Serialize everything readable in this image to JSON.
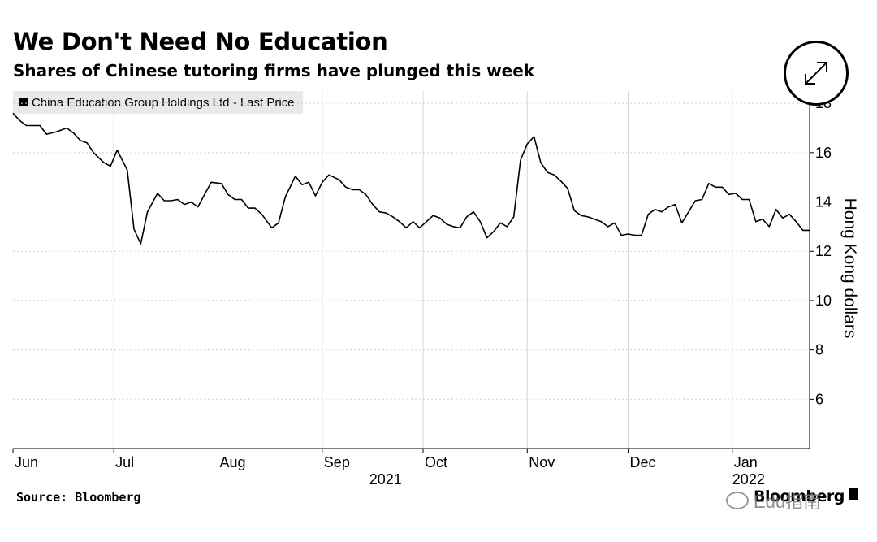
{
  "header": {
    "title": "We Don't Need No Education",
    "subtitle": "Shares of Chinese tutoring firms have plunged this week"
  },
  "legend": {
    "label": "China Education Group Holdings Ltd - Last Price",
    "swatch_color": "#000000"
  },
  "controls": {
    "expand_icon": "expand-arrows-icon"
  },
  "footer": {
    "source": "Source: Bloomberg",
    "brand": "Bloomberg",
    "watermark": "Edu指南",
    "watermark_icon": "wechat-icon"
  },
  "chart_data": {
    "type": "line",
    "title": "We Don't Need No Education",
    "subtitle": "Shares of Chinese tutoring firms have plunged this week",
    "ylabel": "Hong Kong dollars",
    "xlabel": "",
    "ylim": [
      4,
      18.5
    ],
    "yticks": [
      6,
      8,
      10,
      12,
      14,
      16,
      18
    ],
    "y_axis_side": "right",
    "grid": true,
    "legend_position": "top-left",
    "x_range": [
      "2021-06-01",
      "2022-01-24"
    ],
    "x_month_labels": [
      {
        "label": "Jun",
        "date": "2021-06-01"
      },
      {
        "label": "Jul",
        "date": "2021-07-01"
      },
      {
        "label": "Aug",
        "date": "2021-08-01"
      },
      {
        "label": "Sep",
        "date": "2021-09-01"
      },
      {
        "label": "Oct",
        "date": "2021-10-01"
      },
      {
        "label": "Nov",
        "date": "2021-11-01"
      },
      {
        "label": "Dec",
        "date": "2021-12-01"
      },
      {
        "label": "Jan",
        "date": "2022-01-01"
      }
    ],
    "x_year_labels": [
      {
        "label": "2021",
        "date": "2021-09-15"
      },
      {
        "label": "2022",
        "date": "2022-01-01"
      }
    ],
    "series": [
      {
        "name": "China Education Group Holdings Ltd - Last Price",
        "color": "#000000",
        "points": [
          [
            "2021-06-01",
            17.6
          ],
          [
            "2021-06-03",
            17.3
          ],
          [
            "2021-06-05",
            17.1
          ],
          [
            "2021-06-07",
            17.1
          ],
          [
            "2021-06-09",
            17.1
          ],
          [
            "2021-06-11",
            16.75
          ],
          [
            "2021-06-14",
            16.85
          ],
          [
            "2021-06-17",
            17.0
          ],
          [
            "2021-06-19",
            16.8
          ],
          [
            "2021-06-21",
            16.5
          ],
          [
            "2021-06-23",
            16.4
          ],
          [
            "2021-06-25",
            16.0
          ],
          [
            "2021-06-28",
            15.6
          ],
          [
            "2021-06-30",
            15.45
          ],
          [
            "2021-07-02",
            16.1
          ],
          [
            "2021-07-05",
            15.3
          ],
          [
            "2021-07-07",
            12.9
          ],
          [
            "2021-07-09",
            12.3
          ],
          [
            "2021-07-11",
            13.6
          ],
          [
            "2021-07-14",
            14.35
          ],
          [
            "2021-07-16",
            14.05
          ],
          [
            "2021-07-18",
            14.05
          ],
          [
            "2021-07-20",
            14.1
          ],
          [
            "2021-07-22",
            13.9
          ],
          [
            "2021-07-24",
            14.0
          ],
          [
            "2021-07-26",
            13.8
          ],
          [
            "2021-07-28",
            14.3
          ],
          [
            "2021-07-30",
            14.8
          ],
          [
            "2021-08-02",
            14.75
          ],
          [
            "2021-08-04",
            14.3
          ],
          [
            "2021-08-06",
            14.1
          ],
          [
            "2021-08-08",
            14.1
          ],
          [
            "2021-08-10",
            13.75
          ],
          [
            "2021-08-12",
            13.75
          ],
          [
            "2021-08-14",
            13.5
          ],
          [
            "2021-08-17",
            12.95
          ],
          [
            "2021-08-19",
            13.15
          ],
          [
            "2021-08-21",
            14.2
          ],
          [
            "2021-08-24",
            15.05
          ],
          [
            "2021-08-26",
            14.7
          ],
          [
            "2021-08-28",
            14.8
          ],
          [
            "2021-08-30",
            14.25
          ],
          [
            "2021-09-01",
            14.8
          ],
          [
            "2021-09-03",
            15.1
          ],
          [
            "2021-09-06",
            14.9
          ],
          [
            "2021-09-08",
            14.6
          ],
          [
            "2021-09-10",
            14.5
          ],
          [
            "2021-09-12",
            14.5
          ],
          [
            "2021-09-14",
            14.3
          ],
          [
            "2021-09-16",
            13.9
          ],
          [
            "2021-09-18",
            13.6
          ],
          [
            "2021-09-20",
            13.55
          ],
          [
            "2021-09-22",
            13.4
          ],
          [
            "2021-09-24",
            13.2
          ],
          [
            "2021-09-26",
            12.95
          ],
          [
            "2021-09-28",
            13.2
          ],
          [
            "2021-09-30",
            12.95
          ],
          [
            "2021-10-02",
            13.2
          ],
          [
            "2021-10-04",
            13.45
          ],
          [
            "2021-10-06",
            13.35
          ],
          [
            "2021-10-08",
            13.1
          ],
          [
            "2021-10-10",
            13.0
          ],
          [
            "2021-10-12",
            12.95
          ],
          [
            "2021-10-14",
            13.4
          ],
          [
            "2021-10-16",
            13.6
          ],
          [
            "2021-10-18",
            13.2
          ],
          [
            "2021-10-20",
            12.55
          ],
          [
            "2021-10-22",
            12.8
          ],
          [
            "2021-10-24",
            13.15
          ],
          [
            "2021-10-26",
            13.0
          ],
          [
            "2021-10-28",
            13.4
          ],
          [
            "2021-10-30",
            15.7
          ],
          [
            "2021-11-01",
            16.35
          ],
          [
            "2021-11-03",
            16.65
          ],
          [
            "2021-11-05",
            15.6
          ],
          [
            "2021-11-07",
            15.2
          ],
          [
            "2021-11-09",
            15.1
          ],
          [
            "2021-11-11",
            14.85
          ],
          [
            "2021-11-13",
            14.55
          ],
          [
            "2021-11-15",
            13.65
          ],
          [
            "2021-11-17",
            13.45
          ],
          [
            "2021-11-19",
            13.4
          ],
          [
            "2021-11-21",
            13.3
          ],
          [
            "2021-11-23",
            13.2
          ],
          [
            "2021-11-25",
            13.0
          ],
          [
            "2021-11-27",
            13.15
          ],
          [
            "2021-11-29",
            12.65
          ],
          [
            "2021-12-01",
            12.7
          ],
          [
            "2021-12-03",
            12.65
          ],
          [
            "2021-12-05",
            12.65
          ],
          [
            "2021-12-07",
            13.5
          ],
          [
            "2021-12-09",
            13.7
          ],
          [
            "2021-12-11",
            13.6
          ],
          [
            "2021-12-13",
            13.8
          ],
          [
            "2021-12-15",
            13.9
          ],
          [
            "2021-12-17",
            13.15
          ],
          [
            "2021-12-19",
            13.6
          ],
          [
            "2021-12-21",
            14.05
          ],
          [
            "2021-12-23",
            14.1
          ],
          [
            "2021-12-25",
            14.75
          ],
          [
            "2021-12-27",
            14.6
          ],
          [
            "2021-12-29",
            14.6
          ],
          [
            "2021-12-31",
            14.3
          ],
          [
            "2022-01-02",
            14.35
          ],
          [
            "2022-01-04",
            14.1
          ],
          [
            "2022-01-06",
            14.1
          ],
          [
            "2022-01-08",
            13.2
          ],
          [
            "2022-01-10",
            13.3
          ],
          [
            "2022-01-12",
            13.0
          ],
          [
            "2022-01-14",
            13.7
          ],
          [
            "2022-01-16",
            13.35
          ],
          [
            "2022-01-18",
            13.5
          ],
          [
            "2022-01-20",
            13.2
          ],
          [
            "2022-01-22",
            12.85
          ],
          [
            "2022-01-24",
            12.85
          ]
        ]
      }
    ]
  }
}
